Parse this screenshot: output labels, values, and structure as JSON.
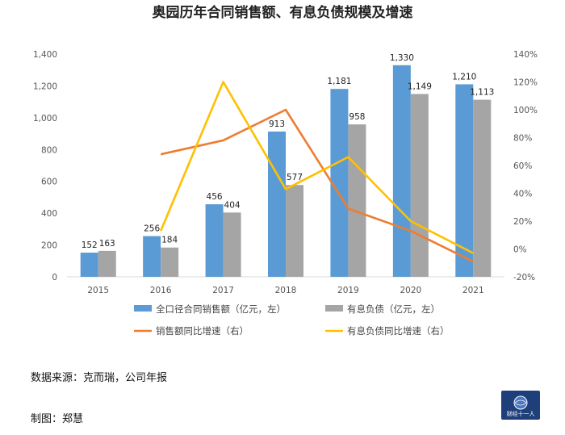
{
  "chart_data": {
    "type": "bar+line",
    "title": "奥园历年合同销售额、有息负债规模及增速",
    "categories": [
      "2015",
      "2016",
      "2017",
      "2018",
      "2019",
      "2020",
      "2021"
    ],
    "series": [
      {
        "name": "全口径合同销售额（亿元，左）",
        "kind": "bar",
        "axis": "left",
        "color": "#5b9bd5",
        "values": [
          152,
          256,
          456,
          913,
          1181,
          1330,
          1210
        ],
        "labels": [
          "152",
          "256",
          "456",
          "913",
          "1,181",
          "1,330",
          "1,210"
        ]
      },
      {
        "name": "有息负债（亿元，左）",
        "kind": "bar",
        "axis": "left",
        "color": "#a5a5a5",
        "values": [
          163,
          184,
          404,
          577,
          958,
          1149,
          1113
        ],
        "labels": [
          "163",
          "184",
          "404",
          "577",
          "958",
          "1,149",
          "1,113"
        ]
      },
      {
        "name": "销售额同比增速（右）",
        "kind": "line",
        "axis": "right",
        "color": "#ed7d31",
        "values": [
          null,
          68,
          78,
          100,
          29,
          13,
          -9
        ]
      },
      {
        "name": "有息负债同比增速（右）",
        "kind": "line",
        "axis": "right",
        "color": "#ffc000",
        "values": [
          null,
          13,
          120,
          43,
          66,
          20,
          -3
        ]
      }
    ],
    "left_axis": {
      "min": 0,
      "max": 1400,
      "step": 200,
      "ticks": [
        "0",
        "200",
        "400",
        "600",
        "800",
        "1,000",
        "1,200",
        "1,400"
      ]
    },
    "right_axis": {
      "min": -20,
      "max": 140,
      "step": 20,
      "ticks": [
        "-20%",
        "0%",
        "20%",
        "40%",
        "60%",
        "80%",
        "100%",
        "120%",
        "140%"
      ]
    },
    "legend_position": "bottom",
    "grid": false
  },
  "footer": {
    "source": "数据来源：克而瑞，公司年报",
    "author": "制图：郑慧"
  },
  "logo": {
    "text": "财经十一人"
  }
}
